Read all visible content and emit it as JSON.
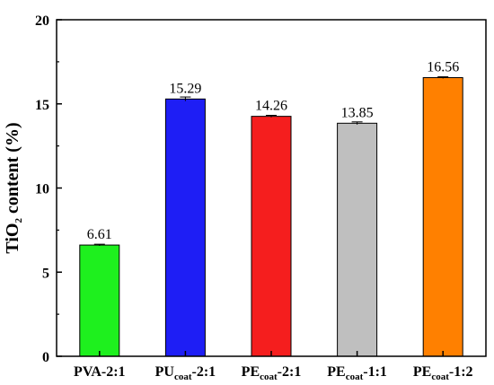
{
  "chart_data": {
    "type": "bar",
    "title": "",
    "xlabel": "",
    "ylabel": {
      "main": "TiO",
      "sub": "2",
      "rest": " content (%)"
    },
    "ylim": [
      0,
      20
    ],
    "yticks": [
      "0",
      "5",
      "10",
      "15",
      "20"
    ],
    "grid": false,
    "categories": [
      {
        "main": "PVA-2:1",
        "sub": "",
        "rest": ""
      },
      {
        "main": "PU",
        "sub": "coat",
        "rest": "-2:1"
      },
      {
        "main": "PE",
        "sub": "coat",
        "rest": "-2:1"
      },
      {
        "main": "PE",
        "sub": "coat",
        "rest": "-1:1"
      },
      {
        "main": "PE",
        "sub": "coat",
        "rest": "-1:2"
      }
    ],
    "values": [
      6.61,
      15.29,
      14.26,
      13.85,
      16.56
    ],
    "value_labels": [
      "6.61",
      "15.29",
      "14.26",
      "13.85",
      "16.56"
    ],
    "errors": [
      0.05,
      0.12,
      0.06,
      0.08,
      0.05
    ],
    "colors": [
      "#1ef01e",
      "#1e1ef5",
      "#f51e1e",
      "#bfbfbf",
      "#ff8000"
    ]
  }
}
